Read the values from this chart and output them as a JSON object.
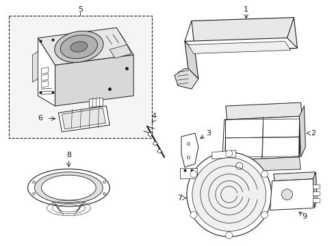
{
  "bg_color": "#ffffff",
  "line_color": "#1a1a1a",
  "light_gray": "#d8d8d8",
  "mid_gray": "#b0b0b0",
  "dot_gray": "#e8e8e8",
  "fig_width": 4.89,
  "fig_height": 3.6,
  "dpi": 100
}
